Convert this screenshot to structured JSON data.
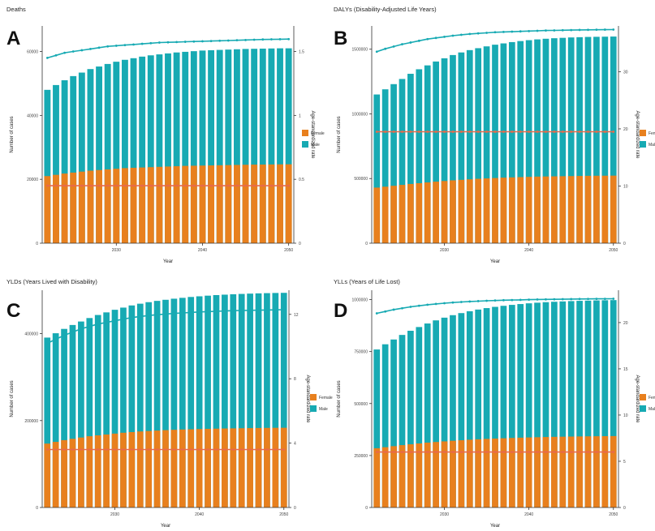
{
  "colors": {
    "female": "#E8801E",
    "male": "#17AAB3",
    "axis": "#333333"
  },
  "years": [
    2022,
    2023,
    2024,
    2025,
    2026,
    2027,
    2028,
    2029,
    2030,
    2031,
    2032,
    2033,
    2034,
    2035,
    2036,
    2037,
    2038,
    2039,
    2040,
    2041,
    2042,
    2043,
    2044,
    2045,
    2046,
    2047,
    2048,
    2049,
    2050
  ],
  "chart_data": [
    {
      "type": "bar",
      "panel_letter": "A",
      "title": "Deaths",
      "xlabel": "Year",
      "ylabel": "Number of cases",
      "y2label": "Age-standardized  rate",
      "x_ticks": [
        2030,
        2040,
        2050
      ],
      "y_ticks": [
        0,
        20000,
        40000,
        60000
      ],
      "y_tick_labels": [
        "0",
        "20000",
        "40000",
        "60000"
      ],
      "ylim": [
        0,
        68000
      ],
      "y2_ticks": [
        0,
        0.5,
        1.0,
        1.5
      ],
      "y2_tick_labels": [
        "0.0",
        "0.5",
        "1.0",
        "1.5"
      ],
      "y2lim": [
        0,
        1.7
      ],
      "legend": [
        "Female",
        "Male"
      ],
      "legend_position": "right",
      "series": [
        {
          "name": "Female",
          "values": [
            21000,
            21400,
            21800,
            22100,
            22400,
            22700,
            22900,
            23100,
            23300,
            23500,
            23600,
            23700,
            23800,
            23900,
            24000,
            24100,
            24200,
            24250,
            24300,
            24350,
            24400,
            24450,
            24500,
            24550,
            24600,
            24620,
            24650,
            24680,
            24700
          ]
        },
        {
          "name": "Male",
          "values": [
            48000,
            49500,
            51000,
            52300,
            53400,
            54500,
            55300,
            56100,
            56800,
            57400,
            57900,
            58400,
            58800,
            59100,
            59400,
            59700,
            59900,
            60100,
            60300,
            60400,
            60500,
            60600,
            60700,
            60800,
            60850,
            60900,
            60950,
            61000,
            61000
          ]
        }
      ],
      "rate_series": [
        {
          "name": "Female",
          "values": [
            0.45,
            0.45,
            0.45,
            0.45,
            0.45,
            0.45,
            0.45,
            0.45,
            0.45,
            0.45,
            0.45,
            0.45,
            0.45,
            0.45,
            0.45,
            0.45,
            0.45,
            0.45,
            0.45,
            0.45,
            0.45,
            0.45,
            0.45,
            0.45,
            0.45,
            0.45,
            0.45,
            0.45,
            0.45
          ]
        },
        {
          "name": "Male",
          "values": [
            1.45,
            1.47,
            1.49,
            1.5,
            1.51,
            1.52,
            1.53,
            1.54,
            1.545,
            1.55,
            1.555,
            1.56,
            1.565,
            1.57,
            1.572,
            1.574,
            1.576,
            1.578,
            1.58,
            1.582,
            1.584,
            1.586,
            1.588,
            1.59,
            1.592,
            1.594,
            1.595,
            1.596,
            1.597
          ]
        }
      ]
    },
    {
      "type": "bar",
      "panel_letter": "B",
      "title": "DALYs (Disability-Adjusted Life Years)",
      "xlabel": "Year",
      "ylabel": "Number of cases",
      "y2label": "Age-standardized  rate",
      "x_ticks": [
        2030,
        2040,
        2050
      ],
      "y_ticks": [
        0,
        500000,
        1000000,
        1500000
      ],
      "y_tick_labels": [
        "0",
        "500000",
        "1000000",
        "1500000"
      ],
      "ylim": [
        0,
        1680000
      ],
      "y2_ticks": [
        0,
        10,
        20,
        30
      ],
      "y2_tick_labels": [
        "0",
        "10",
        "20",
        "30"
      ],
      "y2lim": [
        0,
        38
      ],
      "legend": [
        "Female",
        "Male"
      ],
      "legend_position": "right",
      "series": [
        {
          "name": "Female",
          "values": [
            430000,
            437000,
            444000,
            451000,
            458000,
            464000,
            470000,
            476000,
            481000,
            486000,
            490000,
            494000,
            498000,
            501000,
            504000,
            507000,
            509000,
            511000,
            513000,
            515000,
            516000,
            517000,
            518000,
            519000,
            520000,
            521000,
            521500,
            522000,
            522500
          ]
        },
        {
          "name": "Male",
          "values": [
            1150000,
            1190000,
            1230000,
            1270000,
            1310000,
            1345000,
            1375000,
            1405000,
            1430000,
            1455000,
            1475000,
            1493000,
            1508000,
            1522000,
            1535000,
            1545000,
            1555000,
            1563000,
            1570000,
            1576000,
            1581000,
            1585000,
            1588000,
            1591000,
            1593000,
            1595000,
            1596000,
            1597000,
            1598000
          ]
        }
      ],
      "rate_series": [
        {
          "name": "Female",
          "values": [
            19.5,
            19.5,
            19.5,
            19.5,
            19.5,
            19.5,
            19.5,
            19.5,
            19.5,
            19.5,
            19.5,
            19.5,
            19.5,
            19.5,
            19.5,
            19.5,
            19.5,
            19.5,
            19.5,
            19.5,
            19.5,
            19.5,
            19.5,
            19.5,
            19.5,
            19.5,
            19.5,
            19.5,
            19.5
          ]
        },
        {
          "name": "Male",
          "values": [
            33.5,
            34.0,
            34.4,
            34.8,
            35.1,
            35.4,
            35.7,
            35.9,
            36.1,
            36.3,
            36.45,
            36.6,
            36.7,
            36.8,
            36.9,
            36.95,
            37.0,
            37.05,
            37.1,
            37.15,
            37.2,
            37.22,
            37.25,
            37.27,
            37.3,
            37.32,
            37.34,
            37.35,
            37.36
          ]
        }
      ]
    },
    {
      "type": "bar",
      "panel_letter": "C",
      "title": "YLDs (Years Lived with Disability)",
      "xlabel": "Year",
      "ylabel": "Number of cases",
      "y2label": "Age-standardized  rate",
      "x_ticks": [
        2030,
        2040,
        2050
      ],
      "y_ticks": [
        0,
        200000,
        400000
      ],
      "y_tick_labels": [
        "0",
        "200000",
        "400000"
      ],
      "ylim": [
        0,
        500000
      ],
      "y2_ticks": [
        0,
        4,
        8,
        12
      ],
      "y2_tick_labels": [
        "0",
        "4",
        "8",
        "12"
      ],
      "y2lim": [
        0,
        13.5
      ],
      "legend": [
        "Female",
        "Male"
      ],
      "legend_position": "right",
      "series": [
        {
          "name": "Female",
          "values": [
            147000,
            151000,
            155000,
            158000,
            161000,
            164000,
            166000,
            168000,
            170000,
            172000,
            173500,
            175000,
            176000,
            177000,
            178000,
            178800,
            179500,
            180000,
            180500,
            181000,
            181400,
            181800,
            182100,
            182400,
            182700,
            183000,
            183200,
            183400,
            183500
          ]
        },
        {
          "name": "Male",
          "values": [
            391000,
            401000,
            411000,
            420000,
            428000,
            436000,
            443000,
            449000,
            455000,
            460000,
            465000,
            469000,
            472500,
            475500,
            478000,
            480500,
            482500,
            484500,
            486000,
            487500,
            488800,
            489800,
            490700,
            491500,
            492200,
            492800,
            493300,
            493700,
            494000
          ]
        }
      ],
      "rate_series": [
        {
          "name": "Female",
          "values": [
            3.6,
            3.6,
            3.6,
            3.6,
            3.6,
            3.6,
            3.6,
            3.6,
            3.6,
            3.6,
            3.6,
            3.6,
            3.6,
            3.6,
            3.6,
            3.6,
            3.6,
            3.6,
            3.6,
            3.6,
            3.6,
            3.6,
            3.6,
            3.6,
            3.6,
            3.6,
            3.6,
            3.6,
            3.6
          ]
        },
        {
          "name": "Male",
          "values": [
            10.2,
            10.45,
            10.7,
            10.9,
            11.1,
            11.25,
            11.4,
            11.5,
            11.6,
            11.7,
            11.8,
            11.87,
            11.93,
            11.98,
            12.02,
            12.06,
            12.09,
            12.12,
            12.15,
            12.17,
            12.19,
            12.21,
            12.23,
            12.24,
            12.25,
            12.26,
            12.27,
            12.28,
            12.29
          ]
        }
      ]
    },
    {
      "type": "bar",
      "panel_letter": "D",
      "title": "YLLs (Years of Life Lost)",
      "xlabel": "Year",
      "ylabel": "Number of cases",
      "y2label": "Age-standardized  rate",
      "x_ticks": [
        2030,
        2040,
        2050
      ],
      "y_ticks": [
        0,
        250000,
        500000,
        750000,
        1000000
      ],
      "y_tick_labels": [
        "0",
        "250000",
        "500000",
        "750000",
        "1000000"
      ],
      "ylim": [
        0,
        1045000
      ],
      "y2_ticks": [
        0,
        5,
        10,
        15,
        20
      ],
      "y2_tick_labels": [
        "0",
        "5",
        "10",
        "15",
        "20"
      ],
      "y2lim": [
        0,
        23.5
      ],
      "legend": [
        "Female",
        "Male"
      ],
      "legend_position": "right",
      "series": [
        {
          "name": "Female",
          "values": [
            285000,
            290000,
            295000,
            300000,
            304000,
            308000,
            312000,
            315000,
            318000,
            321000,
            323500,
            326000,
            328000,
            330000,
            331500,
            333000,
            334500,
            335800,
            337000,
            338000,
            339000,
            339800,
            340500,
            341200,
            341800,
            342300,
            342800,
            343200,
            343500
          ]
        },
        {
          "name": "Male",
          "values": [
            760000,
            785000,
            808000,
            830000,
            850000,
            868000,
            885000,
            900000,
            913000,
            925000,
            935000,
            944000,
            952000,
            959000,
            965000,
            970000,
            974500,
            978500,
            982000,
            985000,
            987500,
            989500,
            991200,
            992700,
            994000,
            995000,
            996000,
            996800,
            997500
          ]
        }
      ],
      "rate_series": [
        {
          "name": "Female",
          "values": [
            6.0,
            6.0,
            6.0,
            6.0,
            6.0,
            6.0,
            6.0,
            6.0,
            6.0,
            6.0,
            6.0,
            6.0,
            6.0,
            6.0,
            6.0,
            6.0,
            6.0,
            6.0,
            6.0,
            6.0,
            6.0,
            6.0,
            6.0,
            6.0,
            6.0,
            6.0,
            6.0,
            6.0,
            6.0
          ]
        },
        {
          "name": "Male",
          "values": [
            21.0,
            21.2,
            21.4,
            21.55,
            21.7,
            21.82,
            21.93,
            22.02,
            22.1,
            22.17,
            22.23,
            22.28,
            22.32,
            22.36,
            22.39,
            22.42,
            22.44,
            22.46,
            22.48,
            22.5,
            22.51,
            22.52,
            22.53,
            22.54,
            22.55,
            22.56,
            22.57,
            22.57,
            22.58
          ]
        }
      ]
    }
  ]
}
